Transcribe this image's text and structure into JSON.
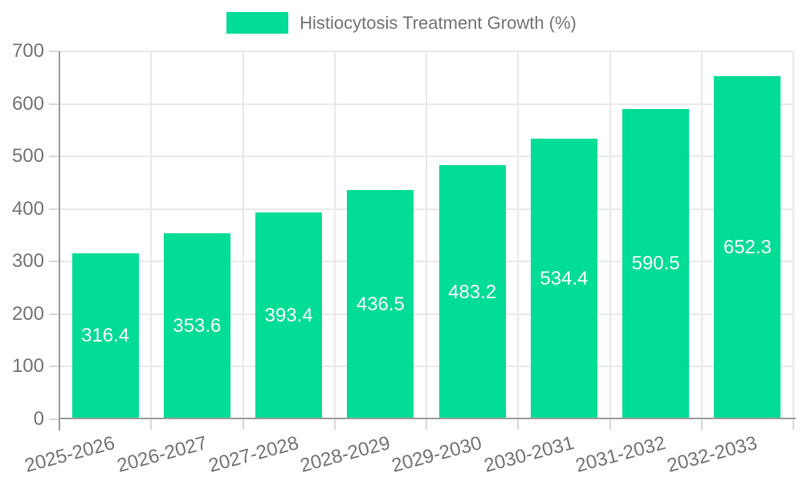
{
  "legend": {
    "label": "Histiocytosis Treatment Growth (%)",
    "position": "top-center"
  },
  "chart_data": {
    "type": "bar",
    "title": "Histiocytosis Treatment Growth (%)",
    "categories": [
      "2025-2026",
      "2026-2027",
      "2027-2028",
      "2028-2029",
      "2029-2030",
      "2030-2031",
      "2031-2032",
      "2032-2033"
    ],
    "values": [
      316.4,
      353.6,
      393.4,
      436.5,
      483.2,
      534.4,
      590.5,
      652.3
    ],
    "value_labels": [
      "316.4",
      "353.6",
      "393.4",
      "436.5",
      "483.2",
      "534.4",
      "590.5",
      "652.3"
    ],
    "xlabel": "",
    "ylabel": "",
    "ylim": [
      0,
      700
    ],
    "ytick_step": 100,
    "yticks": [
      0,
      100,
      200,
      300,
      400,
      500,
      600,
      700
    ],
    "grid": true,
    "legend_position": "top-center",
    "x_label_rotation_deg": -15
  },
  "colors": {
    "bar": "#01DC96",
    "axis": "#9E9E9E",
    "grid": "#E9E9E9",
    "tick": "#D9D9D9",
    "text": "#757575",
    "value_text": "#FFFFFF",
    "background": "#FFFFFF"
  }
}
